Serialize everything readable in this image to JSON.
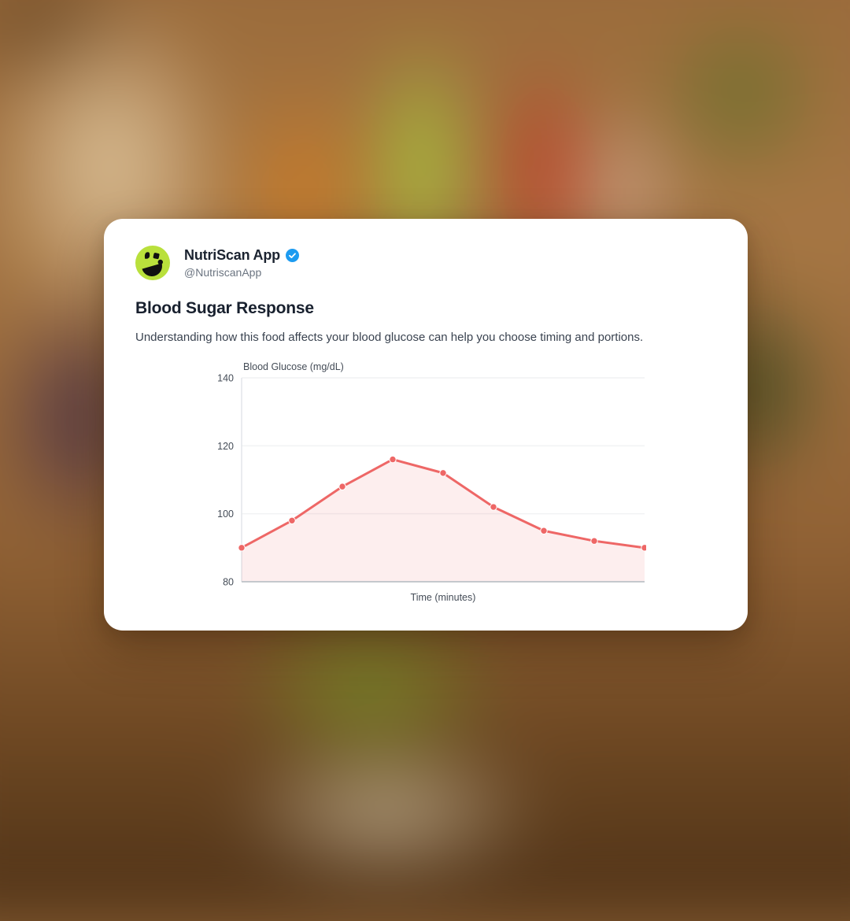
{
  "card": {
    "account": {
      "name": "NutriScan App",
      "handle": "@NutriscanApp"
    },
    "title": "Blood Sugar Response",
    "description": "Understanding how this food affects your blood glucose can help you choose timing and portions."
  },
  "icons": {
    "avatar": "nutriscan-bowl-logo",
    "verified_badge": "blue-circle-checkmark"
  },
  "colors": {
    "card_bg": "#ffffff",
    "name_text": "#1b2330",
    "handle_text": "#6b7480",
    "body_text": "#3a4350",
    "verified_blue": "#1d9bf0",
    "avatar_green": "#b9e03c",
    "accent_line": "#ee6766",
    "accent_fill": "rgba(238,103,102,0.11)",
    "grid_line": "#f1f2f4",
    "axis_line": "#e3e6ea",
    "axis_bottom": "#c4c8cd",
    "axis_text": "#444c57"
  },
  "chart_data": {
    "type": "area",
    "title": "Blood Glucose (mg/dL)",
    "xlabel": "Time (minutes)",
    "ylabel": "Blood Glucose (mg/dL)",
    "ylim": [
      80,
      140
    ],
    "y_ticks": [
      80,
      100,
      120,
      140
    ],
    "x_tick_labels_visible": false,
    "grid": "horizontal",
    "legend": "none",
    "series": [
      {
        "name": "Blood Glucose",
        "values": [
          90,
          98,
          108,
          116,
          112,
          102,
          95,
          92,
          90
        ]
      }
    ]
  }
}
